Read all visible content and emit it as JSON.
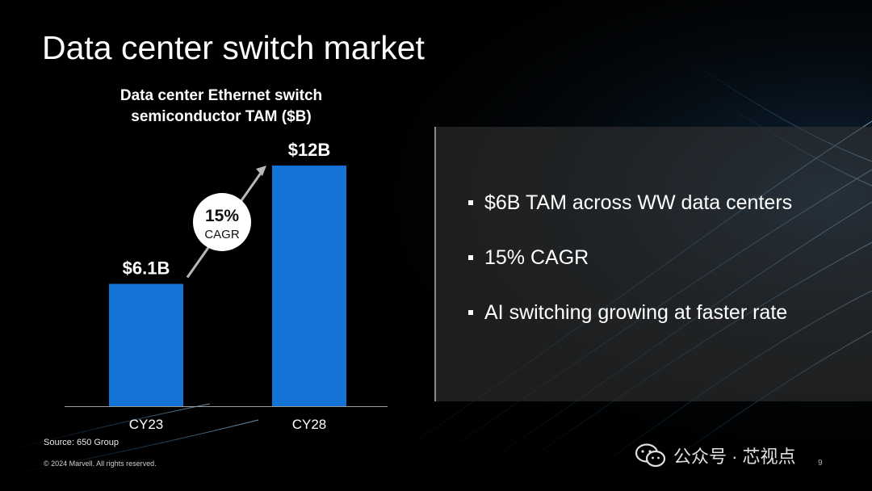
{
  "slide": {
    "title": "Data center switch market",
    "source": "Source: 650 Group",
    "copyright": "© 2024 Marvell. All rights reserved.",
    "page_number": "9"
  },
  "bullets": [
    "$6B TAM across WW data centers",
    "15% CAGR",
    "AI switching growing at faster rate"
  ],
  "chart_data": {
    "type": "bar",
    "title": "Data center Ethernet switch semiconductor TAM ($B)",
    "categories": [
      "CY23",
      "CY28"
    ],
    "values": [
      6.1,
      12
    ],
    "data_labels": [
      "$6.1B",
      "$12B"
    ],
    "annotation": {
      "value": "15%",
      "label": "CAGR"
    },
    "ylim": [
      0,
      12
    ],
    "bar_color": "#1373d6",
    "grid": false
  },
  "watermark": {
    "text": "公众号 · 芯视点",
    "icon": "wechat-icon"
  },
  "colors": {
    "background": "#000000",
    "bar": "#1373d6",
    "panel": "#3a3a3a",
    "text": "#ffffff"
  }
}
